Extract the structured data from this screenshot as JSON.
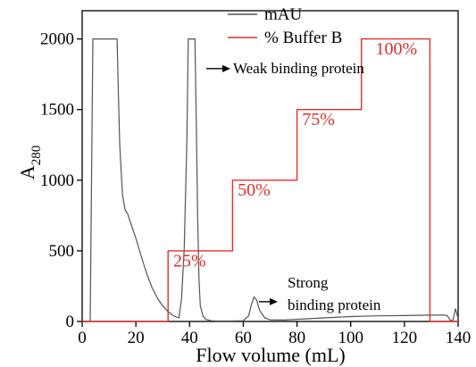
{
  "chart_data": {
    "type": "line",
    "xlabel": "Flow volume (mL)",
    "ylabel_main": "A",
    "ylabel_sub": "280",
    "xlim": [
      0,
      140
    ],
    "ylim": [
      0,
      2200
    ],
    "xticks": [
      0,
      20,
      40,
      60,
      80,
      100,
      120,
      140
    ],
    "yticks": [
      0,
      500,
      1000,
      1500,
      2000
    ],
    "grid": false,
    "legend_position": "top-center",
    "series": [
      {
        "name": "mAU",
        "color": "#555555",
        "x": [
          0,
          3,
          3.5,
          4,
          13,
          13.5,
          14,
          15,
          16,
          17,
          18,
          20,
          22,
          24,
          26,
          28,
          30,
          32,
          34,
          36,
          37,
          38,
          39,
          39.5,
          40,
          42,
          42.5,
          43,
          43.5,
          44,
          45,
          46,
          48,
          50,
          55,
          60,
          62,
          63,
          64,
          65,
          66,
          68,
          70,
          75,
          80,
          90,
          100,
          110,
          120,
          130,
          135,
          136,
          137,
          138,
          139,
          140
        ],
        "y": [
          0,
          0,
          1000,
          2000,
          2000,
          1600,
          1250,
          900,
          790,
          760,
          700,
          590,
          460,
          340,
          240,
          165,
          110,
          70,
          40,
          25,
          160,
          520,
          1300,
          2000,
          2000,
          2000,
          1400,
          750,
          300,
          110,
          40,
          15,
          5,
          3,
          3,
          5,
          40,
          120,
          175,
          150,
          80,
          25,
          12,
          10,
          15,
          25,
          35,
          40,
          42,
          45,
          45,
          40,
          10,
          5,
          90,
          20
        ]
      },
      {
        "name": "% Buffer B",
        "color": "#e0302a",
        "x": [
          0,
          32,
          32,
          56,
          56,
          80,
          80,
          104,
          104,
          129.5,
          129.5,
          140
        ],
        "y": [
          0,
          0,
          500,
          500,
          1000,
          1000,
          1500,
          1500,
          2000,
          2000,
          0,
          0
        ]
      }
    ],
    "legend": [
      "mAU",
      "% Buffer B"
    ],
    "step_labels": [
      {
        "text": "25%",
        "x": 40,
        "y": 390
      },
      {
        "text": "50%",
        "x": 64,
        "y": 890
      },
      {
        "text": "75%",
        "x": 88,
        "y": 1390
      },
      {
        "text": "100%",
        "x": 117,
        "y": 1890
      }
    ],
    "annotations": [
      {
        "text": "Weak binding protein",
        "line1": "Weak binding protein",
        "line2": ""
      },
      {
        "text": "Strong binding protein",
        "line1": "Strong",
        "line2": "binding protein"
      }
    ]
  }
}
